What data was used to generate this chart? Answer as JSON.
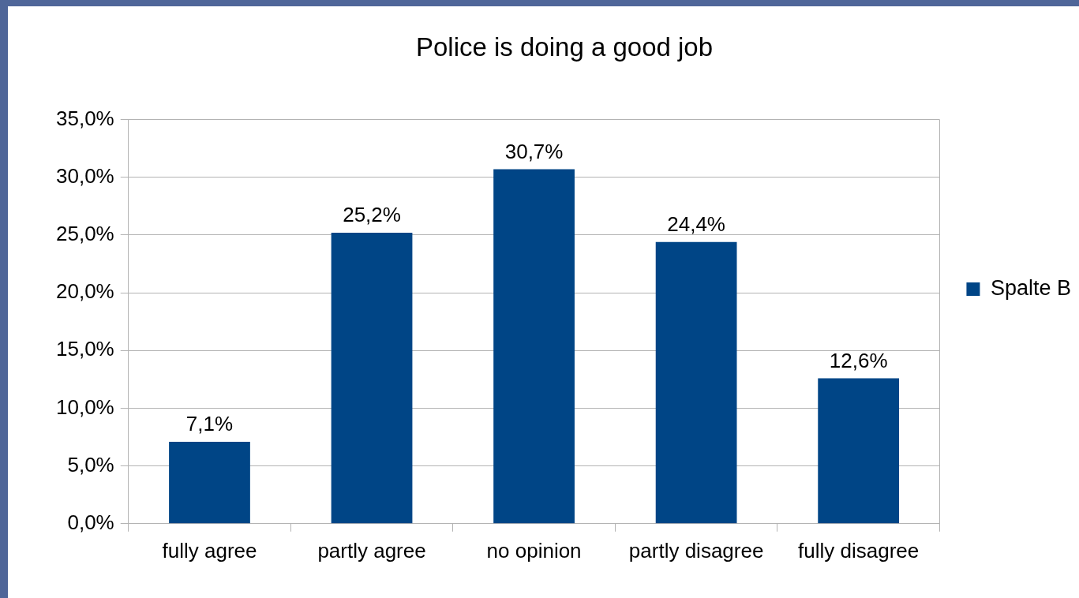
{
  "chart_data": {
    "type": "bar",
    "title": "Police is doing a good job",
    "categories": [
      "fully agree",
      "partly agree",
      "no opinion",
      "partly disagree",
      "fully disagree"
    ],
    "series": [
      {
        "name": "Spalte B",
        "color": "#004586",
        "values": [
          7.1,
          25.2,
          30.7,
          24.4,
          12.6
        ],
        "value_labels": [
          "7,1%",
          "25,2%",
          "30,7%",
          "24,4%",
          "12,6%"
        ]
      }
    ],
    "ylim": [
      0,
      35
    ],
    "yticks": [
      {
        "value": 0,
        "label": "0,0%"
      },
      {
        "value": 5,
        "label": "5,0%"
      },
      {
        "value": 10,
        "label": "10,0%"
      },
      {
        "value": 15,
        "label": "15,0%"
      },
      {
        "value": 20,
        "label": "20,0%"
      },
      {
        "value": 25,
        "label": "25,0%"
      },
      {
        "value": 30,
        "label": "30,0%"
      },
      {
        "value": 35,
        "label": "35,0%"
      }
    ],
    "grid": "y",
    "legend": "right"
  }
}
